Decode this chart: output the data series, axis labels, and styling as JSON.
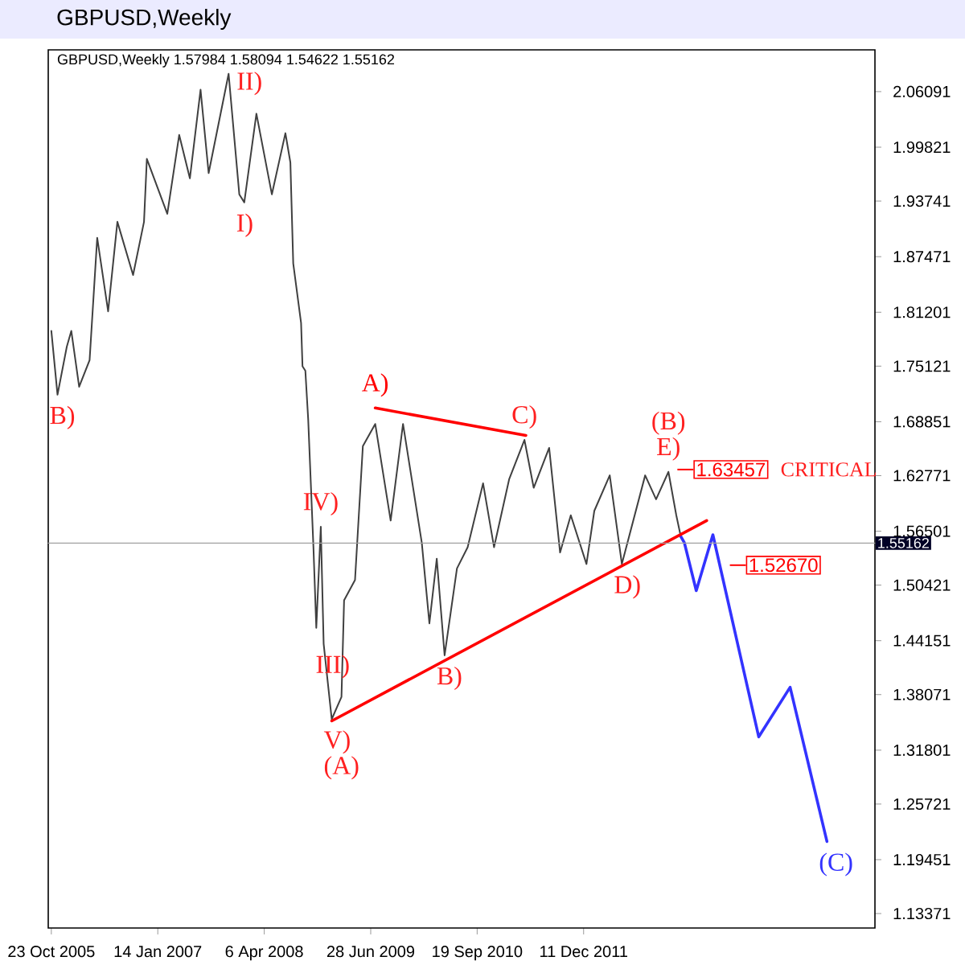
{
  "chart_data": {
    "type": "line",
    "title": "GBPUSD,Weekly",
    "subtitle": "GBPUSD,Weekly  1.57984 1.58094 1.54622 1.55162",
    "xlim": [
      "2005-10-10",
      "2015-04-20"
    ],
    "ylim": [
      1.1174,
      2.108
    ],
    "xticks": [
      {
        "value": "2005-10-23",
        "label": "23 Oct 2005"
      },
      {
        "value": "2007-01-14",
        "label": "14 Jan 2007"
      },
      {
        "value": "2008-04-06",
        "label": "6 Apr 2008"
      },
      {
        "value": "2009-06-28",
        "label": "28 Jun 2009"
      },
      {
        "value": "2010-09-19",
        "label": "19 Sep 2010"
      },
      {
        "value": "2011-12-11",
        "label": "11 Dec 2011"
      }
    ],
    "yticks": [
      1.13371,
      1.19451,
      1.25721,
      1.31801,
      1.38071,
      1.44151,
      1.50421,
      1.56501,
      1.62771,
      1.68851,
      1.75121,
      1.81201,
      1.87471,
      1.93741,
      1.99821,
      2.06091
    ],
    "series": [
      {
        "color": "#404040",
        "x": [
          "2005-10-23",
          "2005-11-18",
          "2005-12-27",
          "2006-01-15",
          "2006-02-17",
          "2006-04-02",
          "2006-05-04",
          "2006-06-19",
          "2006-07-28",
          "2006-10-02",
          "2006-11-17",
          "2006-11-29",
          "2007-02-23",
          "2007-04-14",
          "2007-05-29",
          "2007-07-13",
          "2007-08-16",
          "2007-11-08",
          "2007-12-23",
          "2008-01-13",
          "2008-03-04",
          "2008-05-08",
          "2008-07-04",
          "2008-07-25",
          "2008-08-06",
          "2008-09-08",
          "2008-09-14",
          "2008-09-26",
          "2008-10-08",
          "2008-10-30",
          "2008-11-11",
          "2008-11-30",
          "2008-12-12",
          "2009-01-15",
          "2009-02-25",
          "2009-03-08",
          "2009-04-23",
          "2009-05-26",
          "2009-07-17",
          "2009-09-20",
          "2009-11-11",
          "2010-01-29",
          "2010-03-02",
          "2010-04-02",
          "2010-05-05",
          "2010-06-26",
          "2010-08-10",
          "2010-10-14",
          "2010-11-29",
          "2011-02-01",
          "2011-04-06",
          "2011-05-15",
          "2011-07-19",
          "2011-09-03",
          "2011-10-18",
          "2011-12-23",
          "2012-01-25",
          "2012-03-30",
          "2012-05-20",
          "2012-08-26",
          "2012-10-11",
          "2012-12-02",
          "2013-01-04",
          "2013-01-23"
        ],
        "values": [
          1.791,
          1.719,
          1.773,
          1.791,
          1.728,
          1.758,
          1.896,
          1.813,
          1.914,
          1.854,
          1.914,
          1.985,
          1.923,
          2.012,
          1.963,
          2.063,
          1.969,
          2.081,
          1.945,
          1.936,
          2.036,
          1.945,
          2.014,
          1.981,
          1.867,
          1.8,
          1.751,
          1.746,
          1.691,
          1.547,
          1.456,
          1.57,
          1.438,
          1.353,
          1.378,
          1.487,
          1.51,
          1.661,
          1.686,
          1.577,
          1.686,
          1.552,
          1.461,
          1.534,
          1.425,
          1.523,
          1.547,
          1.619,
          1.547,
          1.624,
          1.668,
          1.614,
          1.659,
          1.541,
          1.583,
          1.528,
          1.588,
          1.628,
          1.528,
          1.628,
          1.601,
          1.632,
          1.583,
          1.559
        ]
      },
      {
        "color": "#3333ff",
        "x": [
          "2013-01-23",
          "2013-02-07",
          "2013-03-29",
          "2013-06-07",
          "2013-12-17",
          "2014-04-28",
          "2014-09-30"
        ],
        "values": [
          1.559,
          1.552,
          1.498,
          1.561,
          1.333,
          1.389,
          1.215
        ]
      },
      {
        "color": "#ff0000",
        "x": [
          "2009-07-17",
          "2011-04-12"
        ],
        "values": [
          1.704,
          1.673
        ]
      },
      {
        "color": "#ff0000",
        "x": [
          "2009-01-15",
          "2013-05-12"
        ],
        "values": [
          1.351,
          1.577
        ]
      }
    ],
    "ref_lines": [
      {
        "axis": "y",
        "value": 1.55162,
        "label": "1.55162",
        "color": "#a0a0a0"
      },
      {
        "axis": "y",
        "value": 1.63457,
        "label": "1.63457"
      },
      {
        "axis": "y",
        "value": 1.5267,
        "label": "1.52670"
      }
    ],
    "annotations": [
      {
        "text": "B)",
        "x": "2005-11-18",
        "y": 1.719
      },
      {
        "text": "II)",
        "x": "2007-11-08",
        "y": 2.081
      },
      {
        "text": "I)",
        "x": "2008-01-13",
        "y": 1.936
      },
      {
        "text": "IV)",
        "x": "2008-11-30",
        "y": 1.57
      },
      {
        "text": "III)",
        "x": "2008-12-12",
        "y": 1.438
      },
      {
        "text": "V)",
        "x": "2009-01-15",
        "y": 1.353
      },
      {
        "text": "(A)",
        "x": "2009-01-15",
        "y": 1.353
      },
      {
        "text": "A)",
        "x": "2009-07-17",
        "y": 1.704
      },
      {
        "text": "B)",
        "x": "2010-05-05",
        "y": 1.425
      },
      {
        "text": "C)",
        "x": "2011-04-06",
        "y": 1.668
      },
      {
        "text": "D)",
        "x": "2012-05-20",
        "y": 1.528
      },
      {
        "text": "E)",
        "x": "2012-12-02",
        "y": 1.632
      },
      {
        "text": "(B)",
        "x": "2012-12-02",
        "y": 1.632
      },
      "CRITICAL",
      {
        "text": "(C)",
        "x": "2014-09-30",
        "y": 1.215
      }
    ]
  }
}
